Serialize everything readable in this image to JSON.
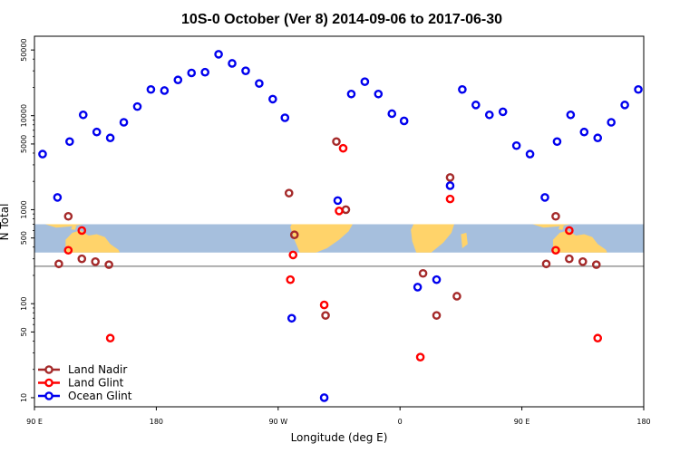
{
  "chart_data": {
    "type": "scatter",
    "title": "10S-0 October (Ver 8)   2014-09-06 to 2017-06-30",
    "xlabel": "Longitude (deg E)",
    "ylabel": "N Total",
    "x_scale": "linear",
    "y_scale": "log",
    "xlim": [
      90,
      540
    ],
    "ylim": [
      8,
      70000
    ],
    "x_ticks": [
      {
        "value": 90,
        "label": "90 E"
      },
      {
        "value": 180,
        "label": "180"
      },
      {
        "value": 270,
        "label": "90 W"
      },
      {
        "value": 360,
        "label": "0"
      },
      {
        "value": 450,
        "label": "90 E"
      },
      {
        "value": 540,
        "label": "180"
      }
    ],
    "y_ticks": [
      {
        "value": 10,
        "label": "10"
      },
      {
        "value": 50,
        "label": "50"
      },
      {
        "value": 100,
        "label": "100"
      },
      {
        "value": 500,
        "label": "500"
      },
      {
        "value": 1000,
        "label": "1000"
      },
      {
        "value": 5000,
        "label": "5000"
      },
      {
        "value": 10000,
        "label": "10000"
      },
      {
        "value": 50000,
        "label": "50000"
      }
    ],
    "reference_line": 250,
    "map_band": {
      "y_low": 350,
      "y_high": 700
    },
    "legend_position": "bottom-left",
    "series": [
      {
        "name": "Land Nadir",
        "color": "#a52a2a",
        "points": [
          [
            108,
            265
          ],
          [
            115,
            850
          ],
          [
            125,
            300
          ],
          [
            135,
            280
          ],
          [
            145,
            260
          ],
          [
            278,
            1500
          ],
          [
            282,
            540
          ],
          [
            305,
            75
          ],
          [
            313,
            5300
          ],
          [
            320,
            1000
          ],
          [
            377,
            210
          ],
          [
            387,
            75
          ],
          [
            397,
            2200
          ],
          [
            402,
            120
          ],
          [
            468,
            265
          ],
          [
            475,
            850
          ],
          [
            485,
            300
          ],
          [
            495,
            280
          ],
          [
            505,
            260
          ]
        ]
      },
      {
        "name": "Land Glint",
        "color": "#ff0000",
        "points": [
          [
            115,
            370
          ],
          [
            125,
            600
          ],
          [
            146,
            43
          ],
          [
            279,
            180
          ],
          [
            281,
            330
          ],
          [
            304,
            97
          ],
          [
            315,
            970
          ],
          [
            318,
            4500
          ],
          [
            375,
            27
          ],
          [
            397,
            1300
          ],
          [
            475,
            370
          ],
          [
            485,
            600
          ],
          [
            506,
            43
          ]
        ]
      },
      {
        "name": "Ocean Glint",
        "color": "#0000ee",
        "points": [
          [
            96,
            3900
          ],
          [
            107,
            1350
          ],
          [
            116,
            5300
          ],
          [
            126,
            10200
          ],
          [
            136,
            6700
          ],
          [
            146,
            5800
          ],
          [
            156,
            8500
          ],
          [
            166,
            12500
          ],
          [
            176,
            19000
          ],
          [
            186,
            18500
          ],
          [
            196,
            24000
          ],
          [
            206,
            28500
          ],
          [
            216,
            29000
          ],
          [
            226,
            45000
          ],
          [
            236,
            36000
          ],
          [
            246,
            30000
          ],
          [
            256,
            22000
          ],
          [
            266,
            15000
          ],
          [
            275,
            9500
          ],
          [
            280,
            70
          ],
          [
            304,
            10
          ],
          [
            314,
            1250
          ],
          [
            324,
            17000
          ],
          [
            334,
            23000
          ],
          [
            344,
            17000
          ],
          [
            354,
            10500
          ],
          [
            363,
            8800
          ],
          [
            373,
            150
          ],
          [
            387,
            180
          ],
          [
            397,
            1800
          ],
          [
            406,
            19000
          ],
          [
            416,
            13000
          ],
          [
            426,
            10200
          ],
          [
            436,
            11000
          ],
          [
            446,
            4800
          ],
          [
            456,
            3900
          ],
          [
            467,
            1350
          ],
          [
            476,
            5300
          ],
          [
            486,
            10200
          ],
          [
            496,
            6700
          ],
          [
            506,
            5800
          ],
          [
            516,
            8500
          ],
          [
            526,
            13000
          ],
          [
            536,
            19000
          ]
        ]
      }
    ]
  },
  "colors": {
    "band": "#a6bfdd",
    "land": "#ffd36a",
    "reference_line": "#808080"
  }
}
